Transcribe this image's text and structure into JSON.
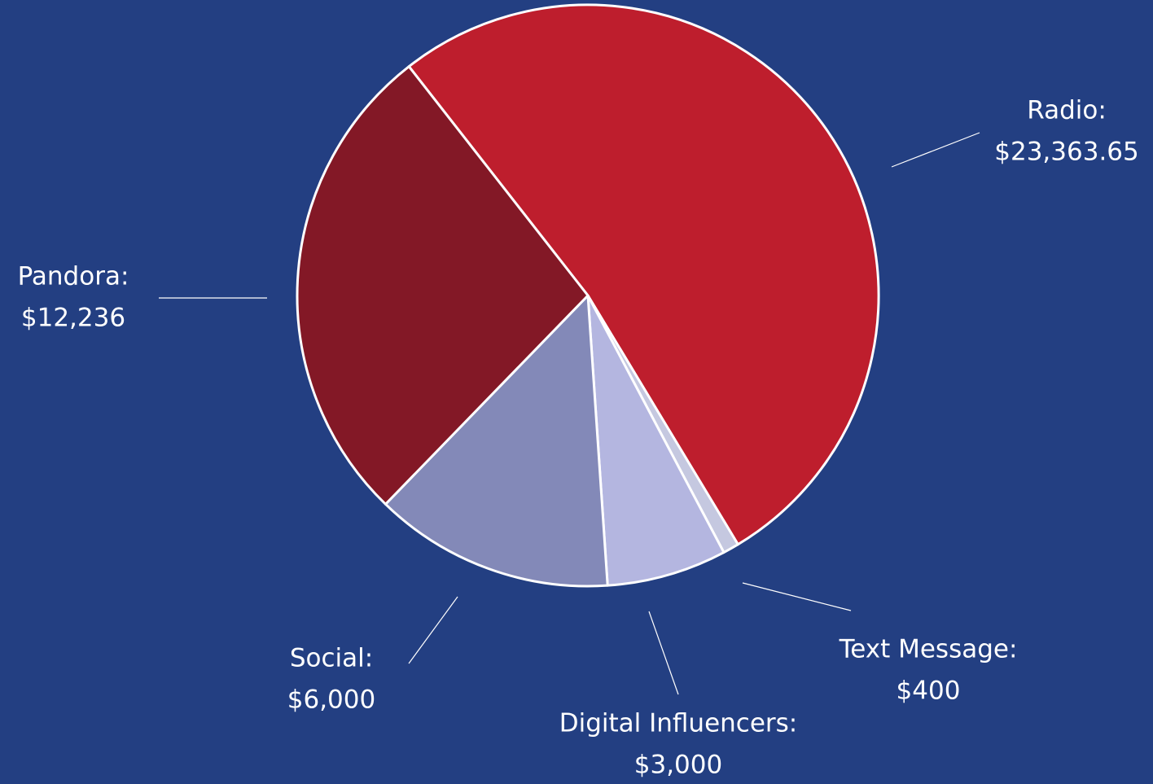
{
  "chart_data": {
    "type": "pie",
    "categories": [
      "Radio:",
      "Text Message:",
      "Digital Influencers:",
      "Social:",
      "Pandora:"
    ],
    "values": [
      23363.65,
      400,
      3000,
      6000,
      12236
    ],
    "value_labels": [
      "$23,363.65",
      "$400",
      "$3,000",
      "$6,000",
      "$12,236"
    ],
    "colors": [
      "#be1e2d",
      "#c5c8e0",
      "#b4b6e0",
      "#8389b8",
      "#831826"
    ]
  }
}
